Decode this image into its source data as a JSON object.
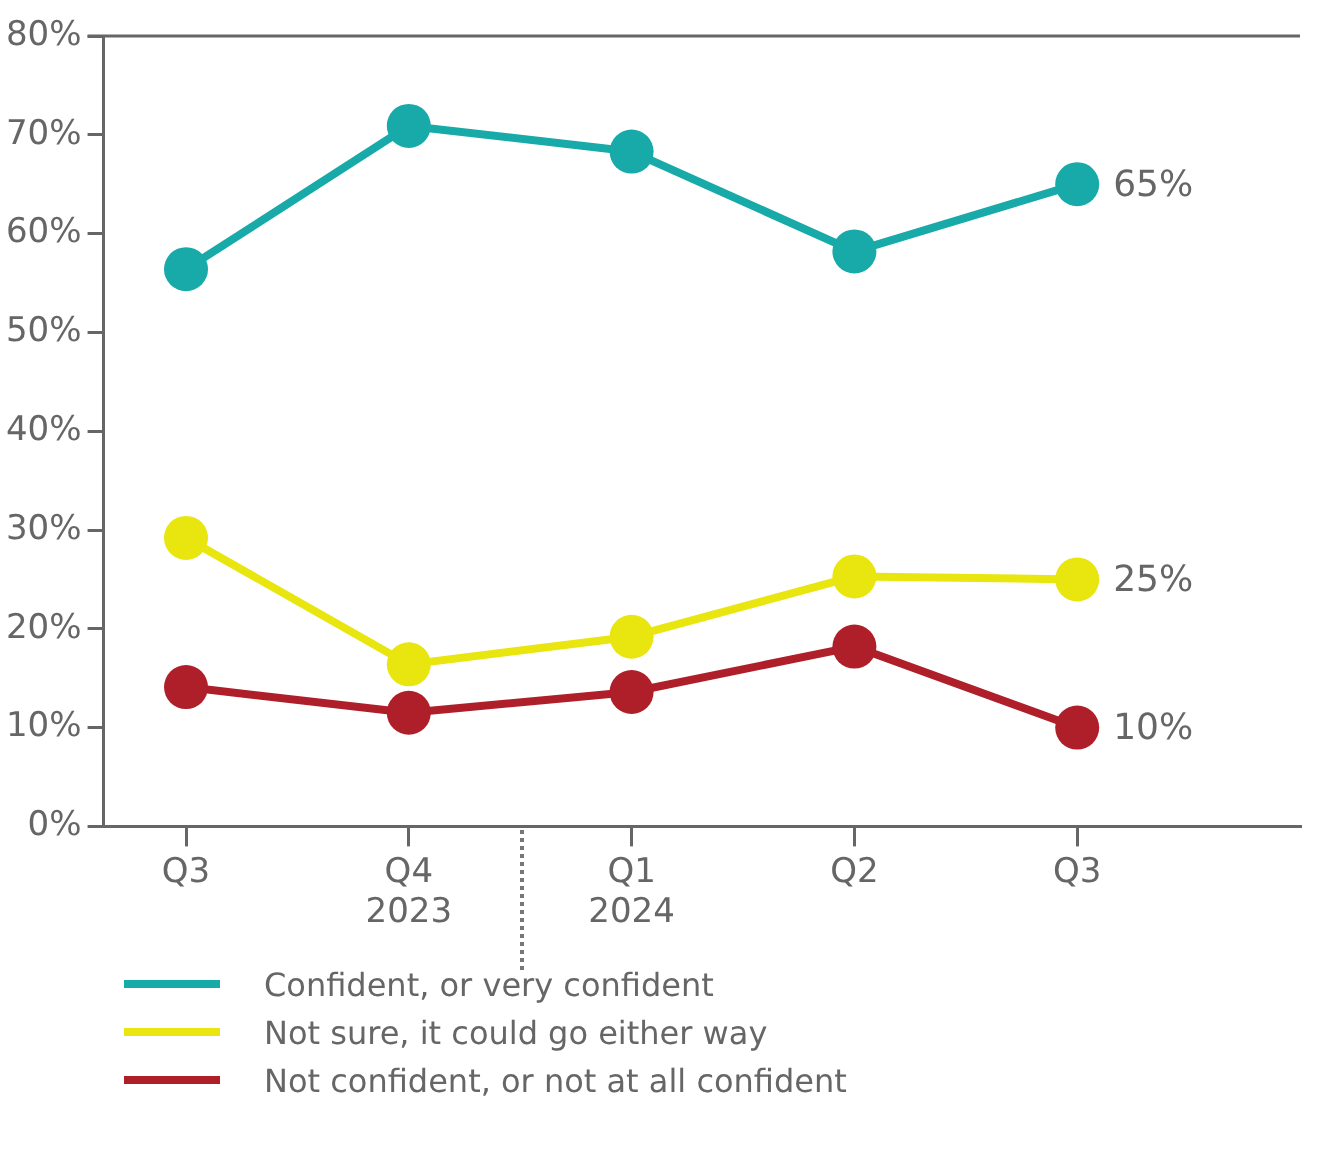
{
  "chart_data": {
    "type": "line",
    "categories": [
      "Q3",
      "Q4\n2023",
      "Q1\n2024",
      "Q2",
      "Q3"
    ],
    "ylim": [
      0,
      80
    ],
    "yticks": [
      {
        "value": 0,
        "label": "0%"
      },
      {
        "value": 10,
        "label": "10%"
      },
      {
        "value": 20,
        "label": "20%"
      },
      {
        "value": 30,
        "label": "30%"
      },
      {
        "value": 40,
        "label": "40%"
      },
      {
        "value": 50,
        "label": "50%"
      },
      {
        "value": 60,
        "label": "60%"
      },
      {
        "value": 70,
        "label": "70%"
      },
      {
        "value": 80,
        "label": "80%"
      }
    ],
    "grid": false,
    "legend": "bottom",
    "marker": "circle",
    "line_style": "solid",
    "series": [
      {
        "name": "Confident, or very confident",
        "color": "#17aaa9",
        "values": [
          56.4,
          70.9,
          68.3,
          58.2,
          65
        ],
        "value_labels": [
          null,
          null,
          null,
          null,
          "65%"
        ]
      },
      {
        "name": "Not sure, it could go either way",
        "color": "#e9e50f",
        "values": [
          29.2,
          16.4,
          19.2,
          25.3,
          25
        ],
        "value_labels": [
          null,
          null,
          null,
          null,
          "25%"
        ]
      },
      {
        "name": "Not confident, or not at all confident",
        "color": "#ae1f29",
        "values": [
          14.1,
          11.5,
          13.6,
          18.2,
          10
        ],
        "value_labels": [
          null,
          null,
          null,
          null,
          "10%"
        ]
      }
    ]
  }
}
